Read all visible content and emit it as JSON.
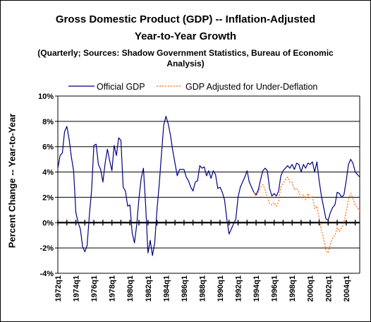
{
  "chart_data": {
    "type": "line",
    "title": "Gross Domestic Product (GDP) -- Inflation-Adjusted",
    "title_line2": "Year-to-Year Growth",
    "subtitle": "(Quarterly; Sources: Shadow Government Statistics, Bureau of Economic Analysis)",
    "ylabel": "Percent Change -- Year-to-Year",
    "xlabel": "",
    "ylim": [
      -4,
      10
    ],
    "yticks": [
      "10%",
      "8%",
      "6%",
      "4%",
      "2%",
      "0%",
      "-2%",
      "-4%"
    ],
    "yticks_values": [
      10,
      8,
      6,
      4,
      2,
      0,
      -2,
      -4
    ],
    "xticks": [
      "1972q1",
      "1974q1",
      "1976q1",
      "1978q1",
      "1980q1",
      "1982q1",
      "1984q1",
      "1986q1",
      "1988q1",
      "1990q1",
      "1992q1",
      "1994q1",
      "1996q1",
      "1998q1",
      "2000q1",
      "2002q1",
      "2004q1"
    ],
    "xticks_values": [
      1972,
      1974,
      1976,
      1978,
      1980,
      1982,
      1984,
      1986,
      1988,
      1990,
      1992,
      1994,
      1996,
      1998,
      2000,
      2002,
      2004
    ],
    "xlim": [
      1972,
      2005.5
    ],
    "grid": "horizontal",
    "legend_position": "top",
    "series": [
      {
        "name": "Official GDP",
        "color": "#000080",
        "style": "solid",
        "points": [
          [
            1972.0,
            4.3
          ],
          [
            1972.25,
            5.3
          ],
          [
            1972.5,
            5.5
          ],
          [
            1972.75,
            7.2
          ],
          [
            1973.0,
            7.6
          ],
          [
            1973.25,
            6.6
          ],
          [
            1973.5,
            5.2
          ],
          [
            1973.75,
            4.1
          ],
          [
            1974.0,
            0.8
          ],
          [
            1974.25,
            0.0
          ],
          [
            1974.5,
            -0.5
          ],
          [
            1974.75,
            -1.9
          ],
          [
            1975.0,
            -2.3
          ],
          [
            1975.25,
            -1.8
          ],
          [
            1975.5,
            0.6
          ],
          [
            1975.75,
            2.6
          ],
          [
            1976.0,
            6.1
          ],
          [
            1976.25,
            6.2
          ],
          [
            1976.5,
            4.6
          ],
          [
            1976.75,
            4.2
          ],
          [
            1977.0,
            3.2
          ],
          [
            1977.25,
            4.7
          ],
          [
            1977.5,
            5.8
          ],
          [
            1977.75,
            4.9
          ],
          [
            1978.0,
            4.1
          ],
          [
            1978.25,
            6.1
          ],
          [
            1978.5,
            5.3
          ],
          [
            1978.75,
            6.7
          ],
          [
            1979.0,
            6.5
          ],
          [
            1979.25,
            2.8
          ],
          [
            1979.5,
            2.5
          ],
          [
            1979.75,
            1.3
          ],
          [
            1980.0,
            1.4
          ],
          [
            1980.25,
            -0.8
          ],
          [
            1980.5,
            -1.6
          ],
          [
            1980.75,
            -0.2
          ],
          [
            1981.0,
            1.9
          ],
          [
            1981.25,
            3.5
          ],
          [
            1981.5,
            4.3
          ],
          [
            1981.75,
            1.3
          ],
          [
            1982.0,
            -2.4
          ],
          [
            1982.25,
            -1.4
          ],
          [
            1982.5,
            -2.6
          ],
          [
            1982.75,
            -1.6
          ],
          [
            1983.0,
            1.0
          ],
          [
            1983.25,
            3.0
          ],
          [
            1983.5,
            5.4
          ],
          [
            1983.75,
            7.7
          ],
          [
            1984.0,
            8.4
          ],
          [
            1984.25,
            7.8
          ],
          [
            1984.5,
            6.9
          ],
          [
            1984.75,
            5.7
          ],
          [
            1985.0,
            4.7
          ],
          [
            1985.25,
            3.7
          ],
          [
            1985.5,
            4.2
          ],
          [
            1985.75,
            4.2
          ],
          [
            1986.0,
            4.2
          ],
          [
            1986.25,
            3.6
          ],
          [
            1986.5,
            3.3
          ],
          [
            1986.75,
            2.8
          ],
          [
            1987.0,
            2.5
          ],
          [
            1987.25,
            3.2
          ],
          [
            1987.5,
            3.3
          ],
          [
            1987.75,
            4.5
          ],
          [
            1988.0,
            4.3
          ],
          [
            1988.25,
            4.4
          ],
          [
            1988.5,
            3.7
          ],
          [
            1988.75,
            4.1
          ],
          [
            1989.0,
            3.5
          ],
          [
            1989.25,
            4.1
          ],
          [
            1989.5,
            3.8
          ],
          [
            1989.75,
            2.7
          ],
          [
            1990.0,
            2.8
          ],
          [
            1990.25,
            2.4
          ],
          [
            1990.5,
            1.8
          ],
          [
            1990.75,
            0.3
          ],
          [
            1991.0,
            -0.9
          ],
          [
            1991.25,
            -0.5
          ],
          [
            1991.5,
            -0.1
          ],
          [
            1991.75,
            0.3
          ],
          [
            1992.0,
            2.0
          ],
          [
            1992.25,
            2.8
          ],
          [
            1992.5,
            3.2
          ],
          [
            1992.75,
            3.6
          ],
          [
            1993.0,
            4.1
          ],
          [
            1993.25,
            3.2
          ],
          [
            1993.5,
            2.8
          ],
          [
            1993.75,
            2.4
          ],
          [
            1994.0,
            2.2
          ],
          [
            1994.25,
            2.6
          ],
          [
            1994.5,
            3.4
          ],
          [
            1994.75,
            4.1
          ],
          [
            1995.0,
            4.3
          ],
          [
            1995.25,
            4.1
          ],
          [
            1995.5,
            2.7
          ],
          [
            1995.75,
            2.1
          ],
          [
            1996.0,
            2.3
          ],
          [
            1996.25,
            2.1
          ],
          [
            1996.5,
            2.5
          ],
          [
            1996.75,
            3.7
          ],
          [
            1997.0,
            4.1
          ],
          [
            1997.25,
            4.3
          ],
          [
            1997.5,
            4.5
          ],
          [
            1997.75,
            4.3
          ],
          [
            1998.0,
            4.6
          ],
          [
            1998.25,
            4.2
          ],
          [
            1998.5,
            4.7
          ],
          [
            1998.75,
            4.6
          ],
          [
            1999.0,
            4.0
          ],
          [
            1999.25,
            4.6
          ],
          [
            1999.5,
            4.3
          ],
          [
            1999.75,
            4.7
          ],
          [
            2000.0,
            4.6
          ],
          [
            2000.25,
            4.8
          ],
          [
            2000.5,
            4.0
          ],
          [
            2000.75,
            4.8
          ],
          [
            2001.0,
            3.3
          ],
          [
            2001.25,
            2.1
          ],
          [
            2001.5,
            1.2
          ],
          [
            2001.75,
            0.3
          ],
          [
            2002.0,
            0.2
          ],
          [
            2002.25,
            0.8
          ],
          [
            2002.5,
            1.2
          ],
          [
            2002.75,
            1.4
          ],
          [
            2003.0,
            2.4
          ],
          [
            2003.25,
            2.3
          ],
          [
            2003.5,
            2.0
          ],
          [
            2003.75,
            2.2
          ],
          [
            2004.0,
            3.3
          ],
          [
            2004.25,
            4.6
          ],
          [
            2004.5,
            5.0
          ],
          [
            2004.75,
            4.7
          ],
          [
            2005.0,
            4.0
          ],
          [
            2005.25,
            3.8
          ],
          [
            2005.5,
            3.6
          ]
        ]
      },
      {
        "name": "GDP Adjusted for Under-Deflation",
        "color": "#ff6600",
        "style": "dotted",
        "points": [
          [
            1993.75,
            2.4
          ],
          [
            1994.0,
            2.1
          ],
          [
            1994.25,
            2.4
          ],
          [
            1994.5,
            2.8
          ],
          [
            1994.75,
            3.0
          ],
          [
            1995.0,
            2.6
          ],
          [
            1995.25,
            2.0
          ],
          [
            1995.5,
            1.5
          ],
          [
            1995.75,
            1.4
          ],
          [
            1996.0,
            1.6
          ],
          [
            1996.25,
            1.3
          ],
          [
            1996.5,
            1.7
          ],
          [
            1996.75,
            2.8
          ],
          [
            1997.0,
            3.1
          ],
          [
            1997.25,
            3.4
          ],
          [
            1997.5,
            3.6
          ],
          [
            1997.75,
            3.2
          ],
          [
            1998.0,
            3.2
          ],
          [
            1998.25,
            2.6
          ],
          [
            1998.5,
            2.7
          ],
          [
            1998.75,
            2.4
          ],
          [
            1999.0,
            1.9
          ],
          [
            1999.25,
            2.2
          ],
          [
            1999.5,
            1.8
          ],
          [
            1999.75,
            2.3
          ],
          [
            2000.0,
            1.9
          ],
          [
            2000.25,
            2.1
          ],
          [
            2000.5,
            1.1
          ],
          [
            2000.75,
            1.3
          ],
          [
            2001.0,
            0.3
          ],
          [
            2001.25,
            -0.6
          ],
          [
            2001.5,
            -1.3
          ],
          [
            2001.75,
            -2.2
          ],
          [
            2002.0,
            -2.4
          ],
          [
            2002.25,
            -1.7
          ],
          [
            2002.5,
            -1.2
          ],
          [
            2002.75,
            -1.0
          ],
          [
            2003.0,
            -0.4
          ],
          [
            2003.25,
            -0.7
          ],
          [
            2003.5,
            -0.4
          ],
          [
            2003.75,
            0.0
          ],
          [
            2004.0,
            0.9
          ],
          [
            2004.25,
            1.8
          ],
          [
            2004.5,
            2.3
          ],
          [
            2004.75,
            1.9
          ],
          [
            2005.0,
            1.4
          ],
          [
            2005.25,
            1.2
          ],
          [
            2005.5,
            0.9
          ]
        ]
      }
    ]
  }
}
